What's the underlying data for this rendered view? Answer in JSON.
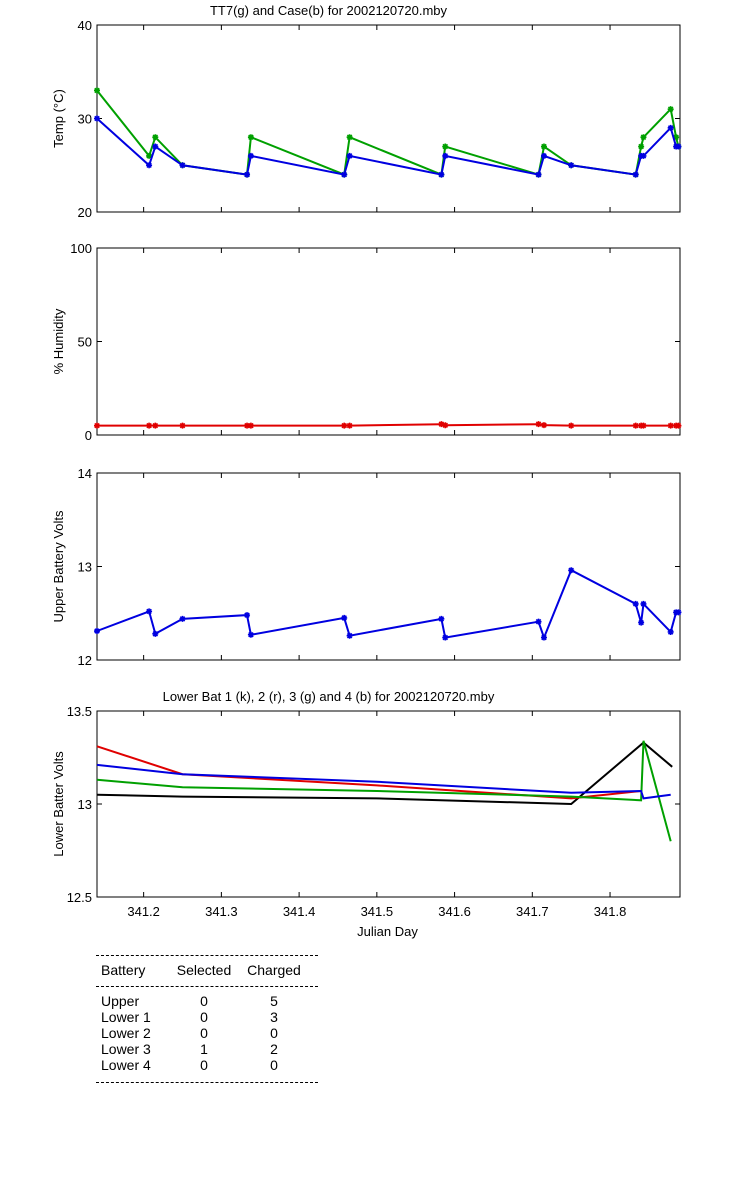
{
  "chart_data": [
    {
      "type": "line",
      "title": "TT7(g) and Case(b) for 2002120720.mby",
      "xlabel": "",
      "ylabel": "Temp  (°C)",
      "xlim": [
        341.14,
        341.89
      ],
      "ylim": [
        20,
        40
      ],
      "yticks": [
        "20",
        "30",
        "40"
      ],
      "grid": false,
      "series": [
        {
          "name": "TT7",
          "color": "#00a000",
          "x": [
            341.14,
            341.207,
            341.215,
            341.25,
            341.333,
            341.338,
            341.458,
            341.465,
            341.583,
            341.588,
            341.708,
            341.715,
            341.75,
            341.833,
            341.84,
            341.843,
            341.878,
            341.885,
            341.888
          ],
          "y": [
            33,
            26,
            28,
            25,
            24,
            28,
            24,
            28,
            24,
            27,
            24,
            27,
            25,
            24,
            27,
            28,
            31,
            28,
            27
          ]
        },
        {
          "name": "Case",
          "color": "#0000e0",
          "x": [
            341.14,
            341.207,
            341.215,
            341.25,
            341.333,
            341.338,
            341.458,
            341.465,
            341.583,
            341.588,
            341.708,
            341.715,
            341.75,
            341.833,
            341.84,
            341.843,
            341.878,
            341.885,
            341.888
          ],
          "y": [
            30,
            25,
            27,
            25,
            24,
            26,
            24,
            26,
            24,
            26,
            24,
            26,
            25,
            24,
            26,
            26,
            29,
            27,
            27
          ]
        }
      ]
    },
    {
      "type": "line",
      "title": "",
      "xlabel": "",
      "ylabel": "% Humidity",
      "xlim": [
        341.14,
        341.89
      ],
      "ylim": [
        0,
        100
      ],
      "yticks": [
        "0",
        "50",
        "100"
      ],
      "grid": false,
      "series": [
        {
          "name": "",
          "color": "#e00000",
          "x": [
            341.14,
            341.207,
            341.215,
            341.25,
            341.333,
            341.338,
            341.458,
            341.465,
            341.583,
            341.588,
            341.708,
            341.715,
            341.75,
            341.833,
            341.84,
            341.843,
            341.878,
            341.885,
            341.888
          ],
          "y": [
            5,
            5,
            5,
            5,
            5,
            5,
            5,
            5,
            5.8,
            5.2,
            5.8,
            5.3,
            5,
            5,
            5,
            5,
            5,
            5,
            5
          ]
        }
      ]
    },
    {
      "type": "line",
      "title": "",
      "xlabel": "",
      "ylabel": "Upper Battery Volts",
      "xlim": [
        341.14,
        341.89
      ],
      "ylim": [
        12,
        14
      ],
      "yticks": [
        "12",
        "13",
        "14"
      ],
      "grid": false,
      "series": [
        {
          "name": "",
          "color": "#0000e0",
          "x": [
            341.14,
            341.207,
            341.215,
            341.25,
            341.333,
            341.338,
            341.458,
            341.465,
            341.583,
            341.588,
            341.708,
            341.715,
            341.75,
            341.833,
            341.84,
            341.843,
            341.878,
            341.885,
            341.888
          ],
          "y": [
            12.31,
            12.52,
            12.28,
            12.44,
            12.48,
            12.27,
            12.45,
            12.26,
            12.44,
            12.24,
            12.41,
            12.24,
            12.96,
            12.6,
            12.4,
            12.6,
            12.3,
            12.51,
            12.51
          ]
        }
      ]
    },
    {
      "type": "line",
      "title": "Lower Bat 1 (k), 2 (r), 3 (g) and 4 (b) for 2002120720.mby",
      "xlabel": "Julian Day",
      "ylabel": "Lower Batter Volts",
      "xlim": [
        341.14,
        341.89
      ],
      "ylim": [
        12.5,
        13.5
      ],
      "yticks": [
        "12.5",
        "13",
        "13.5"
      ],
      "xticks": [
        "341.2",
        "341.3",
        "341.4",
        "341.5",
        "341.6",
        "341.7",
        "341.8"
      ],
      "grid": false,
      "series": [
        {
          "name": "Lower Bat 1 (k)",
          "color": "#000000",
          "x": [
            341.14,
            341.25,
            341.5,
            341.75,
            341.843,
            341.88
          ],
          "y": [
            13.05,
            13.04,
            13.03,
            13.0,
            13.33,
            13.2
          ]
        },
        {
          "name": "Lower Bat 2 (r)",
          "color": "#e00000",
          "x": [
            341.14,
            341.25,
            341.5,
            341.75,
            341.84
          ],
          "y": [
            13.31,
            13.16,
            13.1,
            13.03,
            13.07
          ]
        },
        {
          "name": "Lower Bat 3 (g)",
          "color": "#00a000",
          "x": [
            341.14,
            341.25,
            341.5,
            341.75,
            341.84,
            341.843,
            341.878
          ],
          "y": [
            13.13,
            13.09,
            13.07,
            13.04,
            13.02,
            13.34,
            12.8
          ]
        },
        {
          "name": "Lower Bat 4 (b)",
          "color": "#0000e0",
          "x": [
            341.14,
            341.25,
            341.5,
            341.75,
            341.84,
            341.843,
            341.878
          ],
          "y": [
            13.21,
            13.16,
            13.12,
            13.06,
            13.07,
            13.03,
            13.05
          ]
        }
      ]
    }
  ],
  "battery_table": {
    "headers": [
      "Battery",
      "Selected",
      "Charged"
    ],
    "rows": [
      [
        "Upper",
        "0",
        "5"
      ],
      [
        "Lower 1",
        "0",
        "3"
      ],
      [
        "Lower 2",
        "0",
        "0"
      ],
      [
        "Lower 3",
        "1",
        "2"
      ],
      [
        "Lower 4",
        "0",
        "0"
      ]
    ]
  }
}
